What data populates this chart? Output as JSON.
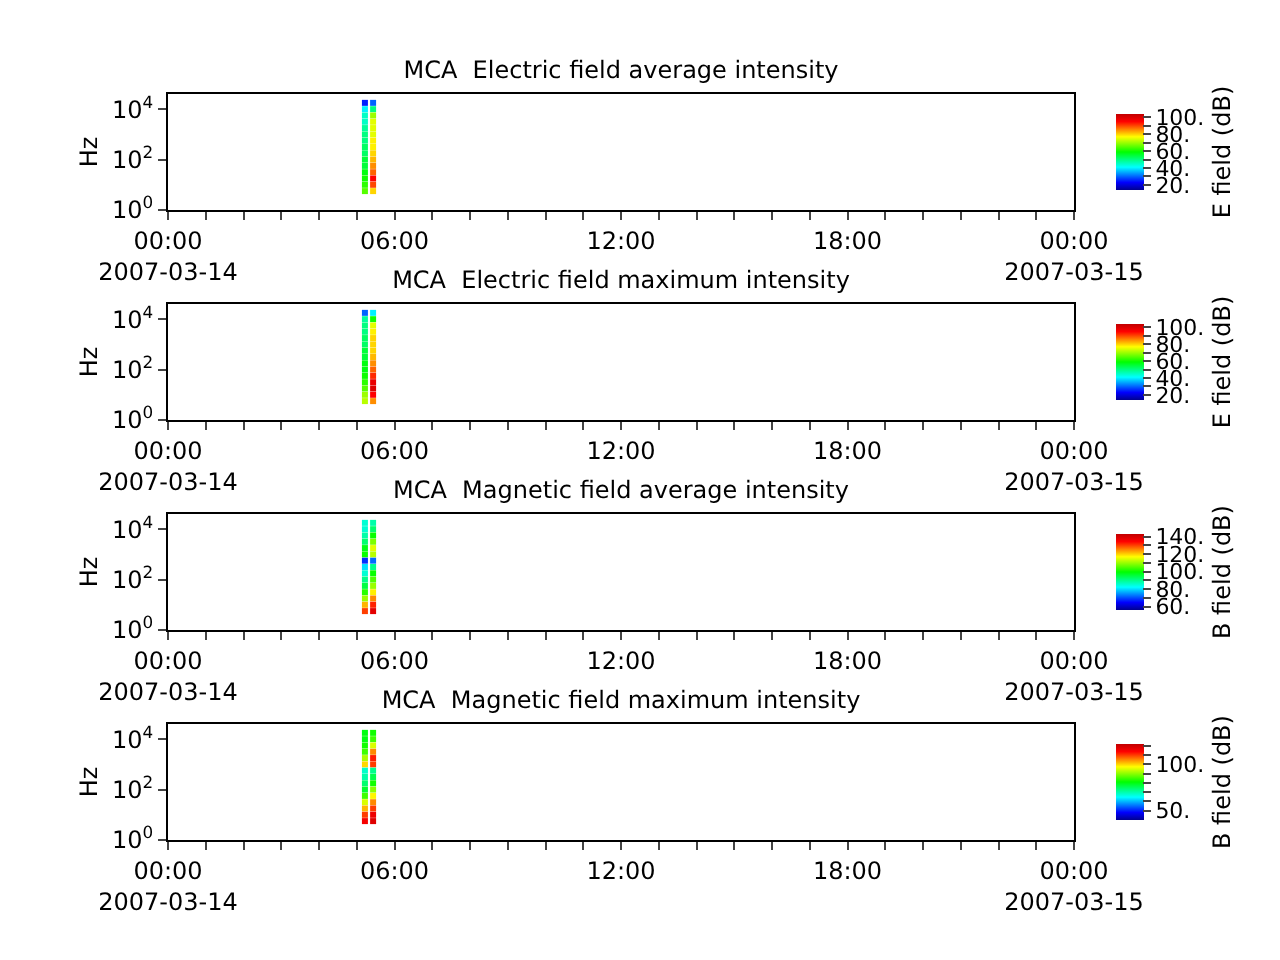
{
  "chart_data": [
    {
      "type": "scatter",
      "title": "MCA  Electric field average intensity",
      "ylabel": "Hz",
      "clabel": "E field (dB)",
      "log": "y",
      "marker": "square",
      "xlim": [
        "2007-03-14T00:00",
        "2007-03-15T00:00"
      ],
      "xticks": [
        {
          "value": "2007-03-14T00:00",
          "label": "00:00\n2007-03-14"
        },
        {
          "value": "2007-03-14T01:00",
          "label": null
        },
        {
          "value": "2007-03-14T02:00",
          "label": null
        },
        {
          "value": "2007-03-14T03:00",
          "label": null
        },
        {
          "value": "2007-03-14T04:00",
          "label": null
        },
        {
          "value": "2007-03-14T05:00",
          "label": null
        },
        {
          "value": "2007-03-14T06:00",
          "label": "06:00"
        },
        {
          "value": "2007-03-14T07:00",
          "label": null
        },
        {
          "value": "2007-03-14T08:00",
          "label": null
        },
        {
          "value": "2007-03-14T09:00",
          "label": null
        },
        {
          "value": "2007-03-14T10:00",
          "label": null
        },
        {
          "value": "2007-03-14T11:00",
          "label": null
        },
        {
          "value": "2007-03-14T12:00",
          "label": "12:00"
        },
        {
          "value": "2007-03-14T13:00",
          "label": null
        },
        {
          "value": "2007-03-14T14:00",
          "label": null
        },
        {
          "value": "2007-03-14T15:00",
          "label": null
        },
        {
          "value": "2007-03-14T16:00",
          "label": null
        },
        {
          "value": "2007-03-14T17:00",
          "label": null
        },
        {
          "value": "2007-03-14T18:00",
          "label": "18:00"
        },
        {
          "value": "2007-03-14T19:00",
          "label": null
        },
        {
          "value": "2007-03-14T20:00",
          "label": null
        },
        {
          "value": "2007-03-14T21:00",
          "label": null
        },
        {
          "value": "2007-03-14T22:00",
          "label": null
        },
        {
          "value": "2007-03-14T23:00",
          "label": null
        },
        {
          "value": "2007-03-15T00:00",
          "label": "00:00\n2007-03-15"
        }
      ],
      "ylim": [
        1,
        40000
      ],
      "yticks": [
        {
          "value": 1,
          "label": "10$^{0}$"
        },
        {
          "value": 100,
          "label": "10$^{2}$"
        },
        {
          "value": 10000,
          "label": "10$^{4}$"
        }
      ],
      "clim": [
        14,
        104
      ],
      "cticks": [
        {
          "value": 20,
          "label": "20."
        },
        {
          "value": 30,
          "label": null
        },
        {
          "value": 40,
          "label": "40."
        },
        {
          "value": 50,
          "label": null
        },
        {
          "value": 60,
          "label": "60."
        },
        {
          "value": 70,
          "label": null
        },
        {
          "value": 80,
          "label": "80."
        },
        {
          "value": 90,
          "label": null
        },
        {
          "value": 100,
          "label": "100."
        }
      ],
      "x": [
        "2007-03-14T05:13",
        "2007-03-14T05:13",
        "2007-03-14T05:13",
        "2007-03-14T05:13",
        "2007-03-14T05:13",
        "2007-03-14T05:13",
        "2007-03-14T05:13",
        "2007-03-14T05:13",
        "2007-03-14T05:13",
        "2007-03-14T05:13",
        "2007-03-14T05:13",
        "2007-03-14T05:13",
        "2007-03-14T05:13",
        "2007-03-14T05:13",
        "2007-03-14T05:13",
        "2007-03-14T05:26",
        "2007-03-14T05:26",
        "2007-03-14T05:26",
        "2007-03-14T05:26",
        "2007-03-14T05:26",
        "2007-03-14T05:26",
        "2007-03-14T05:26",
        "2007-03-14T05:26",
        "2007-03-14T05:26",
        "2007-03-14T05:26",
        "2007-03-14T05:26",
        "2007-03-14T05:26",
        "2007-03-14T05:26",
        "2007-03-14T05:26",
        "2007-03-14T05:26"
      ],
      "values": [
        17800,
        10000,
        5620,
        3160,
        1780,
        1000,
        562,
        316,
        178,
        100,
        56.2,
        31.6,
        17.8,
        10,
        5.62,
        17800,
        10000,
        5620,
        3160,
        1780,
        1000,
        562,
        316,
        178,
        100,
        56.2,
        31.6,
        17.8,
        10,
        5.62
      ],
      "cvalues": [
        25,
        40,
        45,
        45,
        48,
        50,
        50,
        52,
        52,
        55,
        55,
        58,
        60,
        62,
        65,
        30,
        50,
        70,
        75,
        75,
        75,
        78,
        78,
        80,
        82,
        85,
        88,
        95,
        90,
        80
      ]
    },
    {
      "type": "scatter",
      "title": "MCA  Electric field maximum intensity",
      "ylabel": "Hz",
      "clabel": "E field (dB)",
      "log": "y",
      "marker": "square",
      "xlim": [
        "2007-03-14T00:00",
        "2007-03-15T00:00"
      ],
      "xticks": [
        {
          "value": "2007-03-14T00:00",
          "label": "00:00\n2007-03-14"
        },
        {
          "value": "2007-03-14T01:00",
          "label": null
        },
        {
          "value": "2007-03-14T02:00",
          "label": null
        },
        {
          "value": "2007-03-14T03:00",
          "label": null
        },
        {
          "value": "2007-03-14T04:00",
          "label": null
        },
        {
          "value": "2007-03-14T05:00",
          "label": null
        },
        {
          "value": "2007-03-14T06:00",
          "label": "06:00"
        },
        {
          "value": "2007-03-14T07:00",
          "label": null
        },
        {
          "value": "2007-03-14T08:00",
          "label": null
        },
        {
          "value": "2007-03-14T09:00",
          "label": null
        },
        {
          "value": "2007-03-14T10:00",
          "label": null
        },
        {
          "value": "2007-03-14T11:00",
          "label": null
        },
        {
          "value": "2007-03-14T12:00",
          "label": "12:00"
        },
        {
          "value": "2007-03-14T13:00",
          "label": null
        },
        {
          "value": "2007-03-14T14:00",
          "label": null
        },
        {
          "value": "2007-03-14T15:00",
          "label": null
        },
        {
          "value": "2007-03-14T16:00",
          "label": null
        },
        {
          "value": "2007-03-14T17:00",
          "label": null
        },
        {
          "value": "2007-03-14T18:00",
          "label": "18:00"
        },
        {
          "value": "2007-03-14T19:00",
          "label": null
        },
        {
          "value": "2007-03-14T20:00",
          "label": null
        },
        {
          "value": "2007-03-14T21:00",
          "label": null
        },
        {
          "value": "2007-03-14T22:00",
          "label": null
        },
        {
          "value": "2007-03-14T23:00",
          "label": null
        },
        {
          "value": "2007-03-15T00:00",
          "label": "00:00\n2007-03-15"
        }
      ],
      "ylim": [
        1,
        40000
      ],
      "yticks": [
        {
          "value": 1,
          "label": "10$^{0}$"
        },
        {
          "value": 100,
          "label": "10$^{2}$"
        },
        {
          "value": 10000,
          "label": "10$^{4}$"
        }
      ],
      "clim": [
        14,
        104
      ],
      "cticks": [
        {
          "value": 20,
          "label": "20."
        },
        {
          "value": 30,
          "label": null
        },
        {
          "value": 40,
          "label": "40."
        },
        {
          "value": 50,
          "label": null
        },
        {
          "value": 60,
          "label": "60."
        },
        {
          "value": 70,
          "label": null
        },
        {
          "value": 80,
          "label": "80."
        },
        {
          "value": 90,
          "label": null
        },
        {
          "value": 100,
          "label": "100."
        }
      ],
      "x": [
        "2007-03-14T05:13",
        "2007-03-14T05:13",
        "2007-03-14T05:13",
        "2007-03-14T05:13",
        "2007-03-14T05:13",
        "2007-03-14T05:13",
        "2007-03-14T05:13",
        "2007-03-14T05:13",
        "2007-03-14T05:13",
        "2007-03-14T05:13",
        "2007-03-14T05:13",
        "2007-03-14T05:13",
        "2007-03-14T05:13",
        "2007-03-14T05:13",
        "2007-03-14T05:13",
        "2007-03-14T05:26",
        "2007-03-14T05:26",
        "2007-03-14T05:26",
        "2007-03-14T05:26",
        "2007-03-14T05:26",
        "2007-03-14T05:26",
        "2007-03-14T05:26",
        "2007-03-14T05:26",
        "2007-03-14T05:26",
        "2007-03-14T05:26",
        "2007-03-14T05:26",
        "2007-03-14T05:26",
        "2007-03-14T05:26",
        "2007-03-14T05:26",
        "2007-03-14T05:26"
      ],
      "values": [
        17800,
        10000,
        5620,
        3160,
        1780,
        1000,
        562,
        316,
        178,
        100,
        56.2,
        31.6,
        17.8,
        10,
        5.62,
        17800,
        10000,
        5620,
        3160,
        1780,
        1000,
        562,
        316,
        178,
        100,
        56.2,
        31.6,
        17.8,
        10,
        5.62
      ],
      "cvalues": [
        30,
        48,
        50,
        50,
        52,
        52,
        55,
        55,
        58,
        58,
        60,
        62,
        65,
        70,
        72,
        40,
        60,
        75,
        78,
        80,
        80,
        80,
        82,
        85,
        88,
        92,
        98,
        100,
        95,
        85
      ]
    },
    {
      "type": "scatter",
      "title": "MCA  Magnetic field average intensity",
      "ylabel": "Hz",
      "clabel": "B field (dB)",
      "log": "y",
      "marker": "square",
      "xlim": [
        "2007-03-14T00:00",
        "2007-03-15T00:00"
      ],
      "xticks": [
        {
          "value": "2007-03-14T00:00",
          "label": "00:00\n2007-03-14"
        },
        {
          "value": "2007-03-14T01:00",
          "label": null
        },
        {
          "value": "2007-03-14T02:00",
          "label": null
        },
        {
          "value": "2007-03-14T03:00",
          "label": null
        },
        {
          "value": "2007-03-14T04:00",
          "label": null
        },
        {
          "value": "2007-03-14T05:00",
          "label": null
        },
        {
          "value": "2007-03-14T06:00",
          "label": "06:00"
        },
        {
          "value": "2007-03-14T07:00",
          "label": null
        },
        {
          "value": "2007-03-14T08:00",
          "label": null
        },
        {
          "value": "2007-03-14T09:00",
          "label": null
        },
        {
          "value": "2007-03-14T10:00",
          "label": null
        },
        {
          "value": "2007-03-14T11:00",
          "label": null
        },
        {
          "value": "2007-03-14T12:00",
          "label": "12:00"
        },
        {
          "value": "2007-03-14T13:00",
          "label": null
        },
        {
          "value": "2007-03-14T14:00",
          "label": null
        },
        {
          "value": "2007-03-14T15:00",
          "label": null
        },
        {
          "value": "2007-03-14T16:00",
          "label": null
        },
        {
          "value": "2007-03-14T17:00",
          "label": null
        },
        {
          "value": "2007-03-14T18:00",
          "label": "18:00"
        },
        {
          "value": "2007-03-14T19:00",
          "label": null
        },
        {
          "value": "2007-03-14T20:00",
          "label": null
        },
        {
          "value": "2007-03-14T21:00",
          "label": null
        },
        {
          "value": "2007-03-14T22:00",
          "label": null
        },
        {
          "value": "2007-03-14T23:00",
          "label": null
        },
        {
          "value": "2007-03-15T00:00",
          "label": "00:00\n2007-03-15"
        }
      ],
      "ylim": [
        1,
        40000
      ],
      "yticks": [
        {
          "value": 1,
          "label": "10$^{0}$"
        },
        {
          "value": 100,
          "label": "10$^{2}$"
        },
        {
          "value": 10000,
          "label": "10$^{4}$"
        }
      ],
      "clim": [
        56,
        143
      ],
      "cticks": [
        {
          "value": 60,
          "label": "60."
        },
        {
          "value": 70,
          "label": null
        },
        {
          "value": 80,
          "label": "80."
        },
        {
          "value": 90,
          "label": null
        },
        {
          "value": 100,
          "label": "100."
        },
        {
          "value": 110,
          "label": null
        },
        {
          "value": 120,
          "label": "120."
        },
        {
          "value": 130,
          "label": null
        },
        {
          "value": 140,
          "label": "140."
        }
      ],
      "x": [
        "2007-03-14T05:13",
        "2007-03-14T05:13",
        "2007-03-14T05:13",
        "2007-03-14T05:13",
        "2007-03-14T05:13",
        "2007-03-14T05:13",
        "2007-03-14T05:13",
        "2007-03-14T05:13",
        "2007-03-14T05:13",
        "2007-03-14T05:13",
        "2007-03-14T05:13",
        "2007-03-14T05:13",
        "2007-03-14T05:13",
        "2007-03-14T05:13",
        "2007-03-14T05:13",
        "2007-03-14T05:26",
        "2007-03-14T05:26",
        "2007-03-14T05:26",
        "2007-03-14T05:26",
        "2007-03-14T05:26",
        "2007-03-14T05:26",
        "2007-03-14T05:26",
        "2007-03-14T05:26",
        "2007-03-14T05:26",
        "2007-03-14T05:26",
        "2007-03-14T05:26",
        "2007-03-14T05:26",
        "2007-03-14T05:26",
        "2007-03-14T05:26",
        "2007-03-14T05:26"
      ],
      "values": [
        17800,
        10000,
        5620,
        3160,
        1780,
        1000,
        562,
        316,
        178,
        100,
        56.2,
        31.6,
        17.8,
        10,
        5.62,
        17800,
        10000,
        5620,
        3160,
        1780,
        1000,
        562,
        316,
        178,
        100,
        56.2,
        31.6,
        17.8,
        10,
        5.62
      ],
      "cvalues": [
        85,
        85,
        88,
        92,
        98,
        100,
        68,
        80,
        85,
        90,
        95,
        102,
        110,
        122,
        130,
        88,
        92,
        100,
        108,
        115,
        112,
        72,
        90,
        100,
        105,
        110,
        118,
        125,
        132,
        138
      ]
    },
    {
      "type": "scatter",
      "title": "MCA  Magnetic field maximum intensity",
      "ylabel": "Hz",
      "clabel": "B field (dB)",
      "log": "y",
      "marker": "square",
      "xlim": [
        "2007-03-14T00:00",
        "2007-03-15T00:00"
      ],
      "xticks": [
        {
          "value": "2007-03-14T00:00",
          "label": "00:00\n2007-03-14"
        },
        {
          "value": "2007-03-14T01:00",
          "label": null
        },
        {
          "value": "2007-03-14T02:00",
          "label": null
        },
        {
          "value": "2007-03-14T03:00",
          "label": null
        },
        {
          "value": "2007-03-14T04:00",
          "label": null
        },
        {
          "value": "2007-03-14T05:00",
          "label": null
        },
        {
          "value": "2007-03-14T06:00",
          "label": "06:00"
        },
        {
          "value": "2007-03-14T07:00",
          "label": null
        },
        {
          "value": "2007-03-14T08:00",
          "label": null
        },
        {
          "value": "2007-03-14T09:00",
          "label": null
        },
        {
          "value": "2007-03-14T10:00",
          "label": null
        },
        {
          "value": "2007-03-14T11:00",
          "label": null
        },
        {
          "value": "2007-03-14T12:00",
          "label": "12:00"
        },
        {
          "value": "2007-03-14T13:00",
          "label": null
        },
        {
          "value": "2007-03-14T14:00",
          "label": null
        },
        {
          "value": "2007-03-14T15:00",
          "label": null
        },
        {
          "value": "2007-03-14T16:00",
          "label": null
        },
        {
          "value": "2007-03-14T17:00",
          "label": null
        },
        {
          "value": "2007-03-14T18:00",
          "label": "18:00"
        },
        {
          "value": "2007-03-14T19:00",
          "label": null
        },
        {
          "value": "2007-03-14T20:00",
          "label": null
        },
        {
          "value": "2007-03-14T21:00",
          "label": null
        },
        {
          "value": "2007-03-14T22:00",
          "label": null
        },
        {
          "value": "2007-03-14T23:00",
          "label": null
        },
        {
          "value": "2007-03-15T00:00",
          "label": "00:00\n2007-03-15"
        }
      ],
      "ylim": [
        1,
        40000
      ],
      "yticks": [
        {
          "value": 1,
          "label": "10$^{0}$"
        },
        {
          "value": 100,
          "label": "10$^{2}$"
        },
        {
          "value": 10000,
          "label": "10$^{4}$"
        }
      ],
      "clim": [
        40,
        122
      ],
      "cticks": [
        {
          "value": 50,
          "label": "50."
        },
        {
          "value": 60,
          "label": null
        },
        {
          "value": 70,
          "label": null
        },
        {
          "value": 80,
          "label": null
        },
        {
          "value": 90,
          "label": null
        },
        {
          "value": 100,
          "label": "100."
        },
        {
          "value": 110,
          "label": null
        },
        {
          "value": 120,
          "label": null
        }
      ],
      "x": [
        "2007-03-14T05:13",
        "2007-03-14T05:13",
        "2007-03-14T05:13",
        "2007-03-14T05:13",
        "2007-03-14T05:13",
        "2007-03-14T05:13",
        "2007-03-14T05:13",
        "2007-03-14T05:13",
        "2007-03-14T05:13",
        "2007-03-14T05:13",
        "2007-03-14T05:13",
        "2007-03-14T05:13",
        "2007-03-14T05:13",
        "2007-03-14T05:13",
        "2007-03-14T05:13",
        "2007-03-14T05:26",
        "2007-03-14T05:26",
        "2007-03-14T05:26",
        "2007-03-14T05:26",
        "2007-03-14T05:26",
        "2007-03-14T05:26",
        "2007-03-14T05:26",
        "2007-03-14T05:26",
        "2007-03-14T05:26",
        "2007-03-14T05:26",
        "2007-03-14T05:26",
        "2007-03-14T05:26",
        "2007-03-14T05:26",
        "2007-03-14T05:26",
        "2007-03-14T05:26"
      ],
      "values": [
        17800,
        10000,
        5620,
        3160,
        1780,
        1000,
        562,
        316,
        178,
        100,
        56.2,
        31.6,
        17.8,
        10,
        5.62,
        17800,
        10000,
        5620,
        3160,
        1780,
        1000,
        562,
        316,
        178,
        100,
        56.2,
        31.6,
        17.8,
        10,
        5.62
      ],
      "cvalues": [
        80,
        80,
        82,
        85,
        92,
        100,
        68,
        70,
        74,
        78,
        85,
        95,
        102,
        110,
        115,
        82,
        85,
        95,
        105,
        112,
        110,
        72,
        76,
        82,
        90,
        98,
        105,
        110,
        116,
        118
      ]
    }
  ]
}
